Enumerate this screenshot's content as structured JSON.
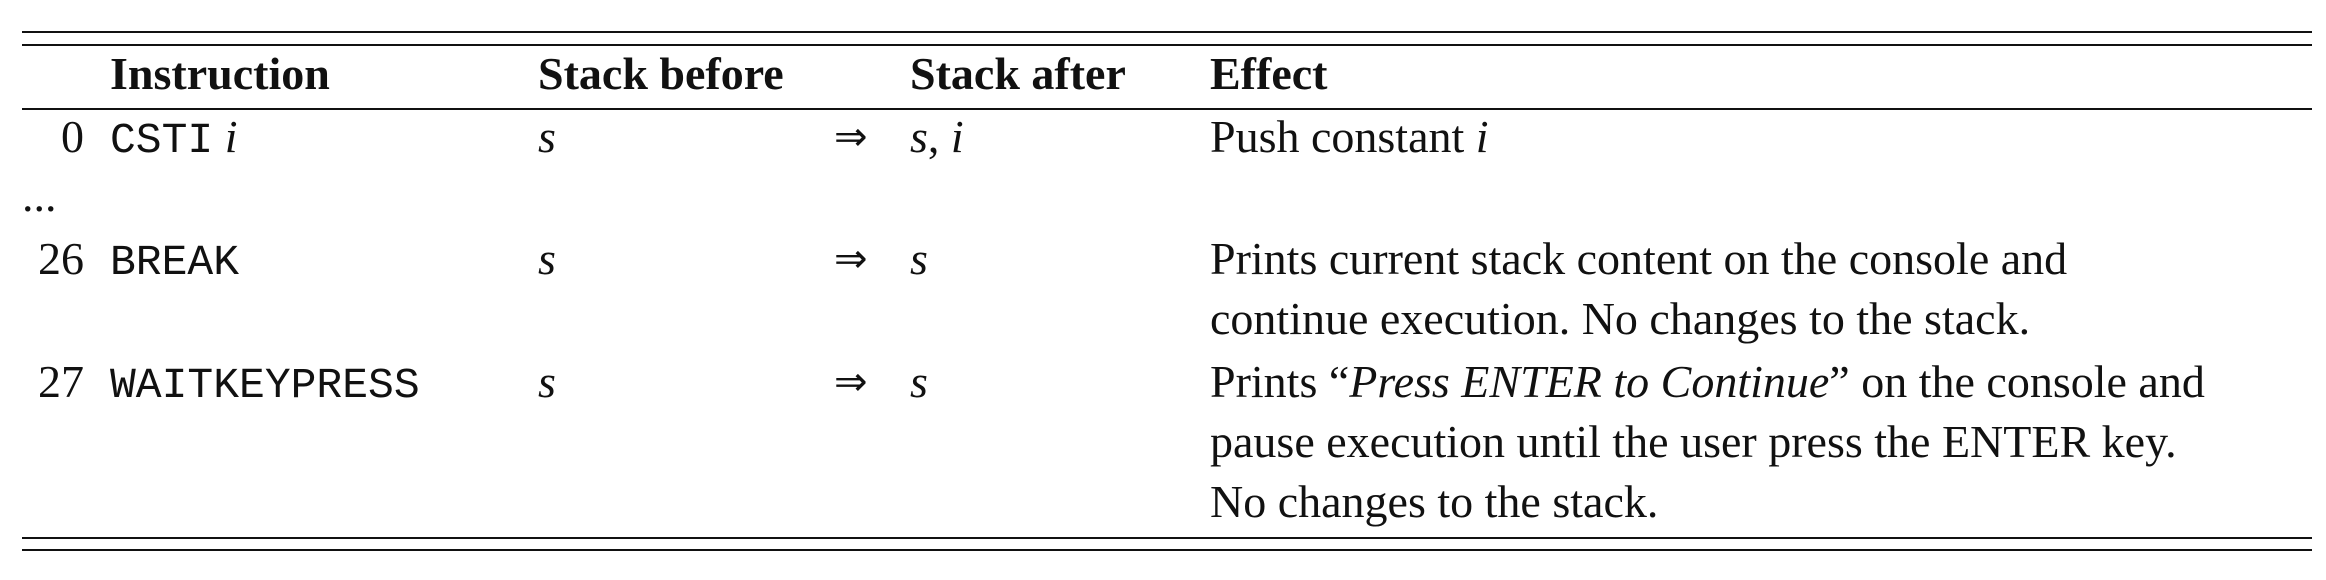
{
  "table": {
    "headers": {
      "instruction": "Instruction",
      "stack_before": "Stack before",
      "stack_after": "Stack after",
      "effect": "Effect"
    },
    "rows": [
      {
        "num": "0",
        "instr_name": "CSTI",
        "instr_arg": "i",
        "stack_before": "s",
        "arrow": "⇒",
        "stack_after_s": "s",
        "stack_after_sep": ", ",
        "stack_after_i": "i",
        "effect_text": "Push constant ",
        "effect_arg": "i"
      },
      {
        "ellipsis": "..."
      },
      {
        "num": "26",
        "instr_name": "BREAK",
        "stack_before": "s",
        "arrow": "⇒",
        "stack_after": "s",
        "effect_lines": [
          "Prints current stack content on the console and",
          "continue execution. No changes to the stack."
        ]
      },
      {
        "num": "27",
        "instr_name": "WAITKEYPRESS",
        "stack_before": "s",
        "arrow": "⇒",
        "stack_after": "s",
        "effect_line1_pre": "Prints “",
        "effect_line1_italic": "Press ENTER to Continue",
        "effect_line1_post": "” on the console and",
        "effect_lines": [
          "pause execution until the user press the ENTER key.",
          "No changes to the stack."
        ]
      }
    ]
  }
}
